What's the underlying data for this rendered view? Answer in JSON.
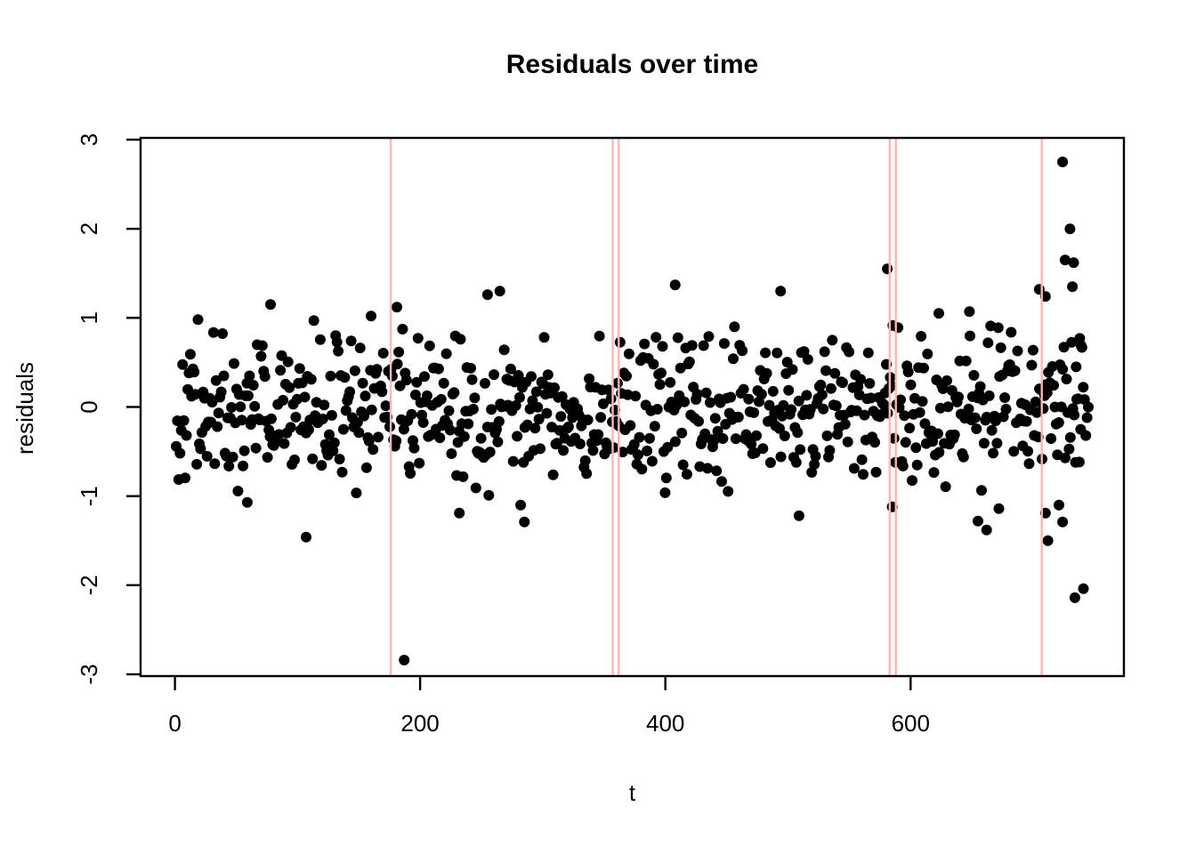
{
  "chart_data": {
    "type": "scatter",
    "title": "Residuals over time",
    "xlabel": "t",
    "ylabel": "residuals",
    "x_ticks": [
      0,
      200,
      400,
      600
    ],
    "y_ticks": [
      -3,
      -2,
      -1,
      0,
      1,
      2,
      3
    ],
    "x_range": [
      -28,
      774
    ],
    "y_range": [
      -3.02,
      3.02
    ],
    "grid": false,
    "legend": "none",
    "point_color": "#000000",
    "point_radius_px": 6,
    "axis_color": "#000000",
    "background": "#ffffff",
    "vline_color": "#ffb6b6",
    "vlines_t": [
      176,
      357,
      362,
      583,
      588,
      707
    ],
    "bulk_points": {
      "comment": "dense residual cloud, approx N(mean,sd) truncated at abs_clip, t evenly spaced",
      "n": 710,
      "t_start": 1,
      "t_end": 745,
      "mean": -0.04,
      "sd": 0.42,
      "abs_clip": 1.0,
      "seed": 42
    },
    "outlier_points": [
      [
        59,
        -1.07
      ],
      [
        78,
        1.15
      ],
      [
        107,
        -1.46
      ],
      [
        160,
        1.02
      ],
      [
        181,
        1.12
      ],
      [
        187,
        -2.84
      ],
      [
        232,
        -1.19
      ],
      [
        255,
        1.26
      ],
      [
        265,
        1.3
      ],
      [
        282,
        -1.1
      ],
      [
        285,
        -1.29
      ],
      [
        408,
        1.37
      ],
      [
        494,
        1.3
      ],
      [
        509,
        -1.22
      ],
      [
        581,
        1.55
      ],
      [
        585,
        -1.12
      ],
      [
        623,
        1.05
      ],
      [
        648,
        1.07
      ],
      [
        655,
        -1.28
      ],
      [
        662,
        -1.38
      ],
      [
        672,
        -1.14
      ],
      [
        705,
        1.32
      ],
      [
        710,
        1.24
      ],
      [
        710,
        -1.19
      ],
      [
        712,
        -1.5
      ],
      [
        721,
        -1.1
      ],
      [
        724,
        -1.29
      ],
      [
        724,
        2.75
      ],
      [
        726,
        1.65
      ],
      [
        730,
        2.0
      ],
      [
        732,
        1.35
      ],
      [
        733,
        1.62
      ],
      [
        734,
        -2.14
      ],
      [
        735,
        0.45
      ],
      [
        738,
        0.77
      ],
      [
        739,
        0.69
      ],
      [
        741,
        -2.04
      ]
    ]
  }
}
